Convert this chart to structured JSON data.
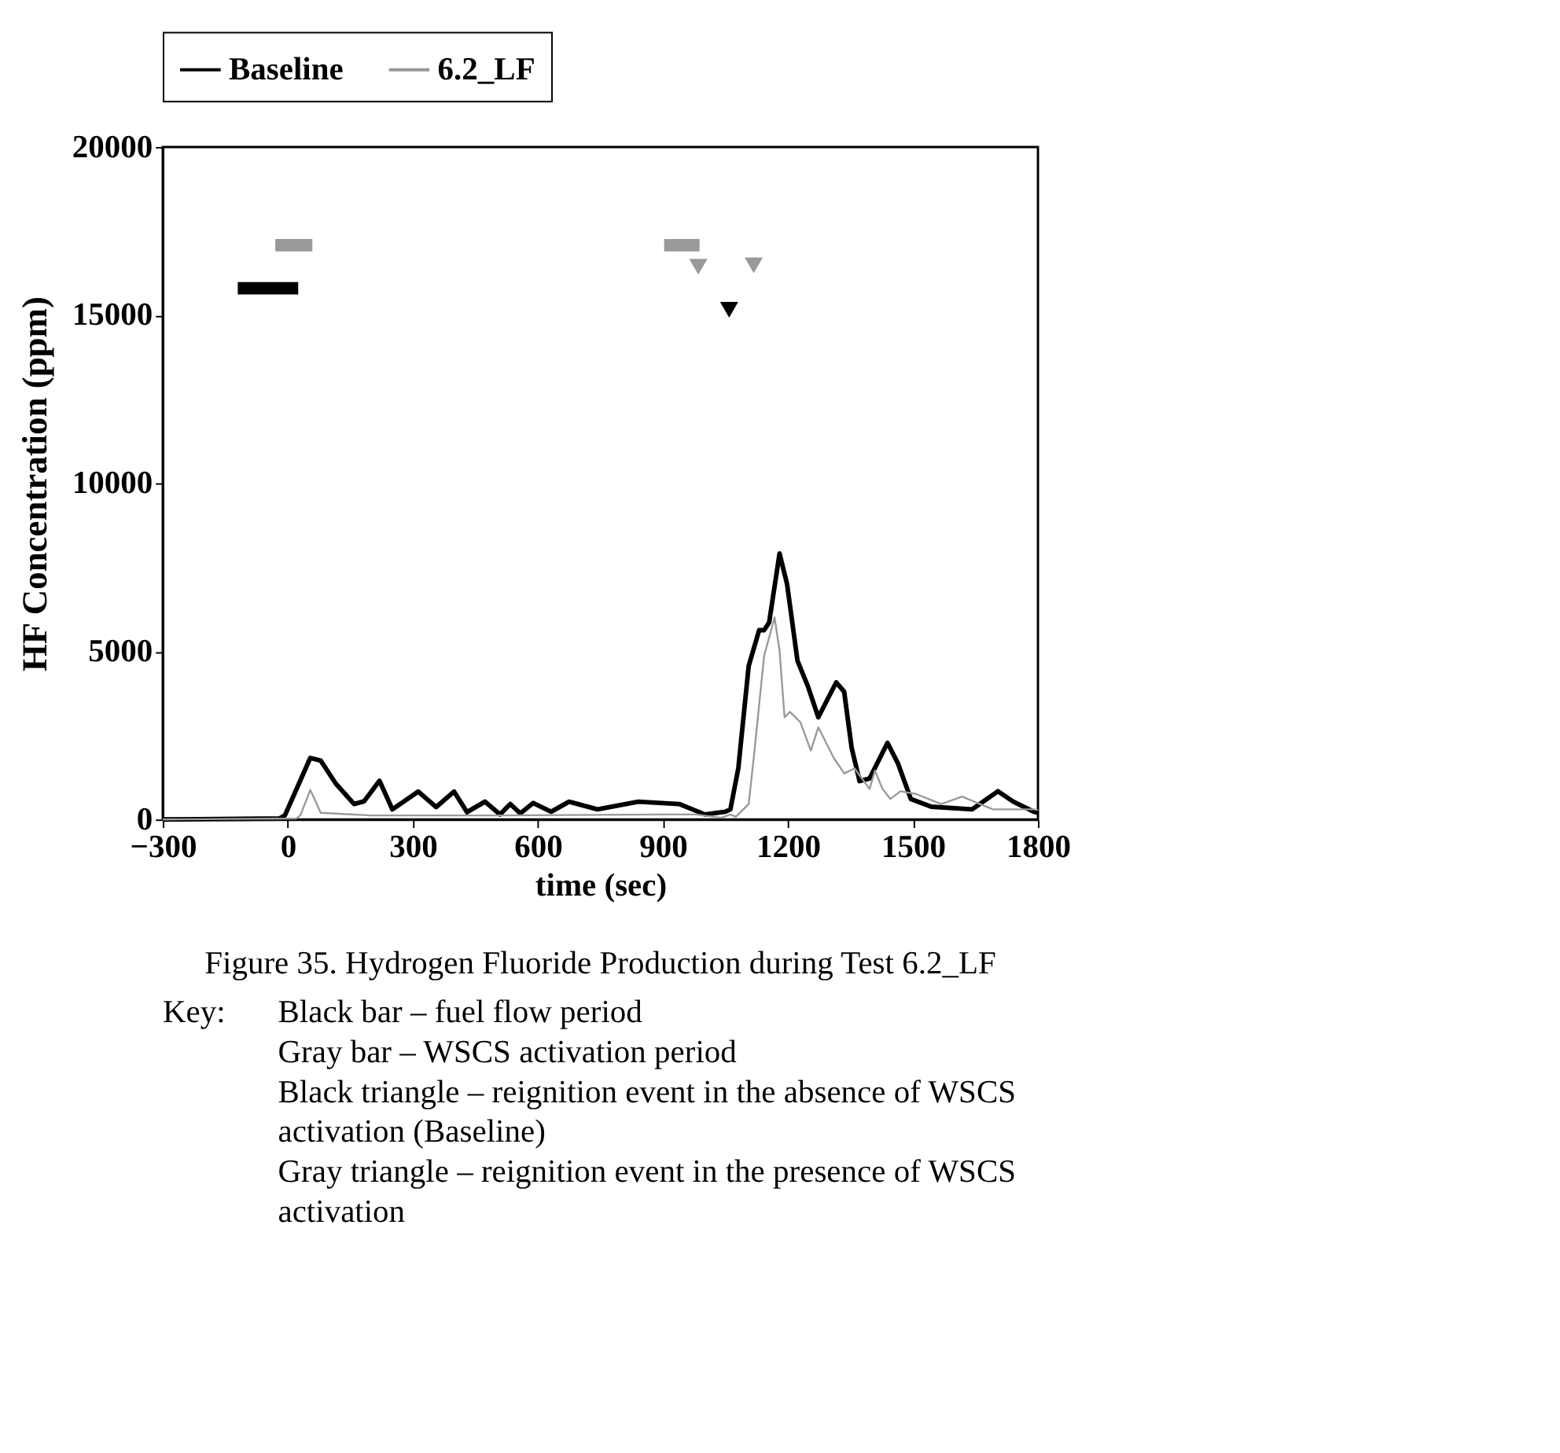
{
  "chart_data": {
    "type": "line",
    "title": "Figure 35. Hydrogen Fluoride Production during Test 6.2_LF",
    "xlabel": "time (sec)",
    "ylabel": "HF Concentration (ppm)",
    "xlim": [
      -300,
      1800
    ],
    "xticks": [
      -300,
      0,
      300,
      600,
      900,
      1200,
      1500,
      1800
    ],
    "ylim": [
      0,
      20000
    ],
    "yticks": [
      0,
      5000,
      10000,
      15000,
      20000
    ],
    "grid": false,
    "legend": "top",
    "line_style": "solid",
    "series": [
      {
        "name": "Baseline",
        "color": "#000000",
        "x": [
          -300,
          -20,
          -7,
          54,
          79,
          115,
          159,
          183,
          220,
          251,
          313,
          356,
          399,
          430,
          473,
          509,
          534,
          558,
          589,
          632,
          675,
          743,
          841,
          939,
          1001,
          1050,
          1062,
          1081,
          1106,
          1131,
          1143,
          1155,
          1180,
          1198,
          1223,
          1248,
          1273,
          1316,
          1335,
          1353,
          1372,
          1396,
          1439,
          1464,
          1495,
          1544,
          1642,
          1704,
          1741,
          1790,
          1800
        ],
        "values": [
          0,
          30,
          120,
          1830,
          1750,
          1070,
          460,
          540,
          1150,
          300,
          830,
          370,
          830,
          220,
          530,
          150,
          460,
          180,
          490,
          230,
          530,
          300,
          530,
          460,
          150,
          230,
          300,
          1520,
          4570,
          5630,
          5630,
          5860,
          7910,
          7000,
          4720,
          3960,
          3040,
          4080,
          3800,
          2130,
          1140,
          1220,
          2280,
          1670,
          610,
          380,
          300,
          840,
          530,
          230,
          200
        ]
      },
      {
        "name": "6.2_LF",
        "color": "#999999",
        "x": [
          -300,
          20,
          30,
          54,
          79,
          200,
          500,
          900,
          980,
          1040,
          1062,
          1075,
          1106,
          1118,
          1143,
          1168,
          1180,
          1192,
          1205,
          1230,
          1255,
          1273,
          1310,
          1335,
          1360,
          1396,
          1409,
          1427,
          1446,
          1470,
          1507,
          1568,
          1618,
          1692,
          1790,
          1800
        ],
        "values": [
          0,
          30,
          120,
          880,
          200,
          120,
          120,
          150,
          150,
          50,
          150,
          80,
          460,
          1830,
          4870,
          6010,
          5020,
          3040,
          3200,
          2890,
          2050,
          2740,
          1830,
          1370,
          1520,
          910,
          1450,
          910,
          610,
          840,
          760,
          460,
          680,
          300,
          300,
          280
        ]
      },
      {
        "color": "#000000",
        "x": [
          -120,
          25
        ],
        "values": [
          15800,
          15800
        ]
      },
      {
        "color": "#999999",
        "x": [
          -30,
          59
        ],
        "values": [
          17080,
          17080
        ]
      },
      {
        "color": "#999999",
        "x": [
          903,
          988
        ],
        "values": [
          17080,
          17080
        ]
      },
      {
        "color": "#000000",
        "type": "scatter",
        "marker": "triangle",
        "x": [
          1059
        ],
        "values": [
          15160
        ]
      },
      {
        "color": "#999999",
        "type": "scatter",
        "marker": "triangle",
        "x": [
          985,
          1118
        ],
        "values": [
          16440,
          16480
        ]
      }
    ],
    "annotations": [
      "Key:",
      "Black bar – fuel flow period",
      "Gray bar – WSCS activation period",
      "Black triangle – reignition event in the absence of WSCS activation (Baseline)",
      "Gray triangle – reignition event in the presence of WSCS activation"
    ]
  }
}
